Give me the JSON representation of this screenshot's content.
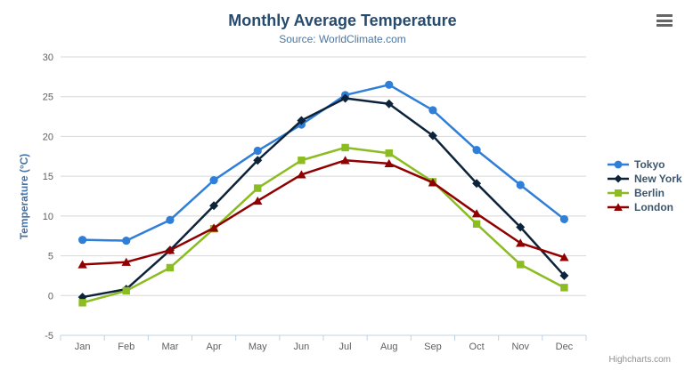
{
  "chart_data": {
    "type": "line",
    "title": "Monthly Average Temperature",
    "subtitle": "Source: WorldClimate.com",
    "xlabel": "",
    "ylabel": "Temperature (°C)",
    "categories": [
      "Jan",
      "Feb",
      "Mar",
      "Apr",
      "May",
      "Jun",
      "Jul",
      "Aug",
      "Sep",
      "Oct",
      "Nov",
      "Dec"
    ],
    "ylim": [
      -5,
      30
    ],
    "ytick_step": 5,
    "grid": true,
    "legend_position": "right-middle-vertical",
    "series": [
      {
        "name": "Tokyo",
        "color": "#2f7ed8",
        "marker": "circle",
        "values": [
          7.0,
          6.9,
          9.5,
          14.5,
          18.2,
          21.5,
          25.2,
          26.5,
          23.3,
          18.3,
          13.9,
          9.6
        ]
      },
      {
        "name": "New York",
        "color": "#0d233a",
        "marker": "diamond",
        "values": [
          -0.2,
          0.8,
          5.7,
          11.3,
          17.0,
          22.0,
          24.8,
          24.1,
          20.1,
          14.1,
          8.6,
          2.5
        ]
      },
      {
        "name": "Berlin",
        "color": "#8bbc21",
        "marker": "square",
        "values": [
          -0.9,
          0.6,
          3.5,
          8.4,
          13.5,
          17.0,
          18.6,
          17.9,
          14.3,
          9.0,
          3.9,
          1.0
        ]
      },
      {
        "name": "London",
        "color": "#910000",
        "marker": "triangle",
        "values": [
          3.9,
          4.2,
          5.7,
          8.5,
          11.9,
          15.2,
          17.0,
          16.6,
          14.2,
          10.3,
          6.6,
          4.8
        ]
      }
    ]
  },
  "credits": {
    "label": "Highcharts.com"
  },
  "controls": {
    "context_menu_icon": "hamburger-icon"
  },
  "colors": {
    "title": "#274b6d",
    "subtitle": "#4d759e",
    "axis_title": "#4572a7",
    "tick_label": "#606060",
    "grid": "#d8d8d8",
    "axis_line": "#c0d0e0",
    "legend_text": "#3e576f",
    "credits": "#909090",
    "menu": "#666666"
  }
}
